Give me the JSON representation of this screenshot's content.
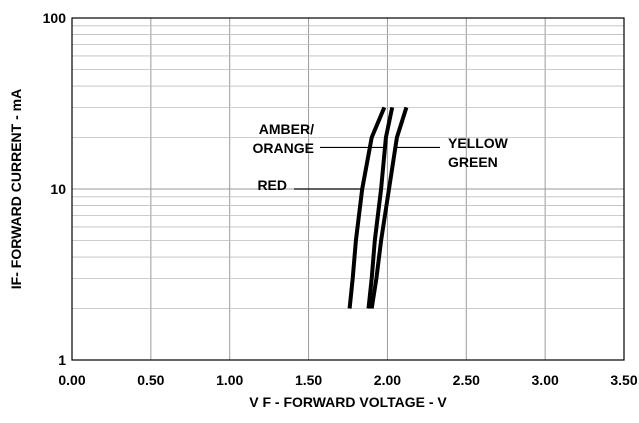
{
  "chart_data": {
    "type": "line",
    "title": "",
    "xlabel": "V F - FORWARD VOLTAGE - V",
    "ylabel": "IF- FORWARD CURRENT - mA",
    "xlim": [
      0,
      3.5
    ],
    "ylim": [
      1,
      100
    ],
    "yscale": "log",
    "grid": true,
    "x_ticks": [
      "0.00",
      "0.50",
      "1.00",
      "1.50",
      "2.00",
      "2.50",
      "3.00",
      "3.50"
    ],
    "y_ticks": [
      "1",
      "10",
      "100"
    ],
    "series": [
      {
        "name": "RED",
        "x": [
          1.76,
          1.78,
          1.8,
          1.84,
          1.9,
          1.98
        ],
        "y": [
          2,
          3,
          5,
          10,
          20,
          30
        ]
      },
      {
        "name": "AMBER/ ORANGE",
        "x": [
          1.88,
          1.9,
          1.92,
          1.96,
          1.99,
          2.03
        ],
        "y": [
          2,
          3,
          5,
          10,
          20,
          30
        ]
      },
      {
        "name": "YELLOW GREEN",
        "x": [
          1.9,
          1.93,
          1.96,
          2.01,
          2.06,
          2.12
        ],
        "y": [
          2,
          3,
          5,
          10,
          20,
          30
        ]
      }
    ],
    "annotations": [
      {
        "series": "AMBER/ ORANGE",
        "lines": [
          "AMBER/",
          "ORANGE"
        ]
      },
      {
        "series": "RED",
        "lines": [
          "RED"
        ]
      },
      {
        "series": "YELLOW GREEN",
        "lines": [
          "YELLOW",
          "GREEN"
        ]
      }
    ]
  }
}
